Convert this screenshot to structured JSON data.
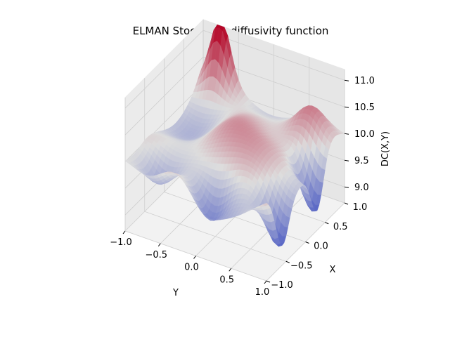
{
  "chart_data": {
    "type": "surface3d",
    "title": "ELMAN Stochastic diffusivity function",
    "xlabel": "Y",
    "ylabel": "X",
    "zlabel": "DC(X,Y)",
    "xlim": [
      -1.0,
      1.0
    ],
    "ylim": [
      -1.0,
      1.0
    ],
    "zlim": [
      8.7,
      11.2
    ],
    "x_ticks": [
      -1.0,
      -0.5,
      0.0,
      0.5,
      1.0
    ],
    "x_tick_labels": [
      "−1.0",
      "−0.5",
      "0.0",
      "0.5",
      "1.0"
    ],
    "y_ticks": [
      -1.0,
      -0.5,
      0.0,
      0.5,
      1.0
    ],
    "y_tick_labels": [
      "−1.0",
      "−0.5",
      "0.0",
      "0.5",
      "1.0"
    ],
    "z_ticks": [
      9.0,
      9.5,
      10.0,
      10.5,
      11.0
    ],
    "z_tick_labels": [
      "9.0",
      "9.5",
      "10.0",
      "10.5",
      "11.0"
    ],
    "colormap": "coolwarm",
    "colors": {
      "low": "#3b4cc0",
      "mid": "#dddddd",
      "high": "#b40426"
    },
    "grid": true,
    "surface_features": {
      "base_level": 10.0,
      "peaks": [
        {
          "y": -0.75,
          "x": 1.0,
          "z": 11.2
        },
        {
          "y": 0.65,
          "x": 0.75,
          "z": 10.6
        },
        {
          "y": -0.1,
          "x": -0.1,
          "z": 10.4
        }
      ],
      "troughs": [
        {
          "y": 0.95,
          "x": 0.3,
          "z": 8.8
        },
        {
          "y": 0.95,
          "x": -0.6,
          "z": 8.9
        },
        {
          "y": -0.65,
          "x": -0.75,
          "z": 9.2
        },
        {
          "y": 0.1,
          "x": -0.8,
          "z": 9.3
        }
      ]
    }
  }
}
